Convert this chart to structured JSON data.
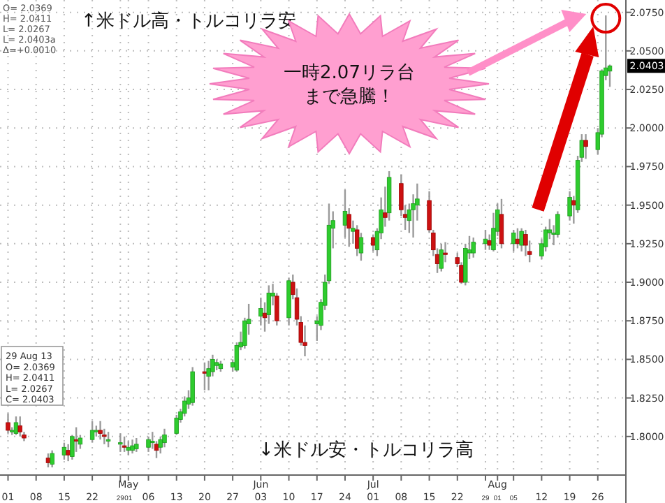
{
  "chart_data": {
    "type": "candlestick",
    "x": [
      "--04-01",
      "--04-02",
      "--04-03",
      "--04-04",
      "--04-05",
      "--04-11",
      "--04-12",
      "--04-15",
      "--04-16",
      "--04-17",
      "--04-18",
      "--04-19",
      "--04-22",
      "--04-23",
      "--04-24",
      "--04-25",
      "--04-26",
      "--04-29",
      "--04-30",
      "--05-01",
      "--05-02",
      "--05-03",
      "--05-06",
      "--05-07",
      "--05-08",
      "--05-09",
      "--05-10",
      "--05-13",
      "--05-14",
      "--05-15",
      "--05-16",
      "--05-17",
      "--05-20",
      "--05-21",
      "--05-22",
      "--05-23",
      "--05-24",
      "--05-27",
      "--05-28",
      "--05-29",
      "--05-30",
      "--05-31",
      "--06-03",
      "--06-04",
      "--06-05",
      "--06-06",
      "--06-07",
      "--06-10",
      "--06-11",
      "--06-12",
      "--06-13",
      "--06-14",
      "--06-17",
      "--06-18",
      "--06-19",
      "--06-20",
      "--06-21",
      "--06-24",
      "--06-25",
      "--06-26",
      "--06-27",
      "--06-28",
      "--07-01",
      "--07-02",
      "--07-03",
      "--07-04",
      "--07-05",
      "--07-08",
      "--07-09",
      "--07-10",
      "--07-11",
      "--07-12",
      "--07-15",
      "--07-16",
      "--07-17",
      "--07-18",
      "--07-19",
      "--07-22",
      "--07-23",
      "--07-24",
      "--07-25",
      "--07-26",
      "--07-29",
      "--07-30",
      "--07-31",
      "--08-01",
      "--08-02",
      "--08-05",
      "--08-06",
      "--08-07",
      "--08-08",
      "--08-09",
      "--08-12",
      "--08-13",
      "--08-14",
      "--08-15",
      "--08-16",
      "--08-19",
      "--08-20",
      "--08-21",
      "--08-22",
      "--08-23",
      "--08-26",
      "--08-27",
      "--08-28",
      "--08-29"
    ],
    "ohlc": [
      [
        1.809,
        1.815,
        1.802,
        1.804
      ],
      [
        1.803,
        1.806,
        1.801,
        1.804
      ],
      [
        1.802,
        1.813,
        1.801,
        1.809
      ],
      [
        1.807,
        1.813,
        1.8,
        1.803
      ],
      [
        1.801,
        1.803,
        1.797,
        1.799
      ],
      [
        1.786,
        1.789,
        1.78,
        1.783
      ],
      [
        1.782,
        1.791,
        1.78,
        1.789
      ],
      [
        1.788,
        1.796,
        1.785,
        1.793
      ],
      [
        1.791,
        1.795,
        1.784,
        1.788
      ],
      [
        1.787,
        1.801,
        1.785,
        1.8
      ],
      [
        1.798,
        1.806,
        1.79,
        1.797
      ],
      [
        1.795,
        1.801,
        1.792,
        1.799
      ],
      [
        1.798,
        1.81,
        1.796,
        1.804
      ],
      [
        1.803,
        1.807,
        1.8,
        1.804
      ],
      [
        1.804,
        1.81,
        1.798,
        1.802
      ],
      [
        1.801,
        1.805,
        1.795,
        1.8
      ],
      [
        1.797,
        1.803,
        1.793,
        1.798
      ],
      [
        1.795,
        1.802,
        1.79,
        1.796
      ],
      [
        1.794,
        1.8,
        1.79,
        1.793
      ],
      [
        1.791,
        1.797,
        1.788,
        1.793
      ],
      [
        1.791,
        1.798,
        1.789,
        1.794
      ],
      [
        1.792,
        1.799,
        1.79,
        1.795
      ],
      [
        1.793,
        1.8,
        1.79,
        1.798
      ],
      [
        1.796,
        1.803,
        1.792,
        1.797
      ],
      [
        1.795,
        1.797,
        1.786,
        1.791
      ],
      [
        1.793,
        1.8,
        1.789,
        1.798
      ],
      [
        1.796,
        1.805,
        1.793,
        1.801
      ],
      [
        1.802,
        1.814,
        1.801,
        1.812
      ],
      [
        1.811,
        1.818,
        1.809,
        1.816
      ],
      [
        1.815,
        1.826,
        1.813,
        1.823
      ],
      [
        1.821,
        1.83,
        1.818,
        1.825
      ],
      [
        1.822,
        1.845,
        1.82,
        1.842
      ],
      [
        1.842,
        1.848,
        1.83,
        1.841
      ],
      [
        1.839,
        1.849,
        1.83,
        1.844
      ],
      [
        1.842,
        1.853,
        1.839,
        1.85
      ],
      [
        1.846,
        1.85,
        1.843,
        1.848
      ],
      [
        1.844,
        1.849,
        1.842,
        1.847
      ],
      [
        1.845,
        1.85,
        1.842,
        1.848
      ],
      [
        1.843,
        1.861,
        1.842,
        1.859
      ],
      [
        1.858,
        1.868,
        1.856,
        1.861
      ],
      [
        1.859,
        1.877,
        1.857,
        1.875
      ],
      [
        1.873,
        1.886,
        1.866,
        1.876
      ],
      [
        1.878,
        1.89,
        1.872,
        1.883
      ],
      [
        1.88,
        1.887,
        1.868,
        1.877
      ],
      [
        1.879,
        1.898,
        1.873,
        1.893
      ],
      [
        1.891,
        1.899,
        1.885,
        1.893
      ],
      [
        1.891,
        1.893,
        1.872,
        1.875
      ],
      [
        1.877,
        1.903,
        1.872,
        1.901
      ],
      [
        1.9,
        1.905,
        1.889,
        1.892
      ],
      [
        1.89,
        1.896,
        1.872,
        1.876
      ],
      [
        1.874,
        1.878,
        1.859,
        1.861
      ],
      [
        1.861,
        1.872,
        1.852,
        1.859
      ],
      [
        1.873,
        1.878,
        1.862,
        1.875
      ],
      [
        1.872,
        1.889,
        1.869,
        1.887
      ],
      [
        1.885,
        1.905,
        1.882,
        1.9
      ],
      [
        1.901,
        1.951,
        1.899,
        1.937
      ],
      [
        1.935,
        1.946,
        1.922,
        1.94
      ],
      [
        1.937,
        1.96,
        1.929,
        1.946
      ],
      [
        1.944,
        1.948,
        1.923,
        1.935
      ],
      [
        1.933,
        1.94,
        1.925,
        1.935
      ],
      [
        1.934,
        1.937,
        1.917,
        1.922
      ],
      [
        1.919,
        1.932,
        1.914,
        1.929
      ],
      [
        1.929,
        1.931,
        1.92,
        1.924
      ],
      [
        1.921,
        1.935,
        1.917,
        1.933
      ],
      [
        1.932,
        1.955,
        1.928,
        1.947
      ],
      [
        1.945,
        1.962,
        1.936,
        1.942
      ],
      [
        1.945,
        1.972,
        1.94,
        1.968
      ],
      [
        1.964,
        1.97,
        1.943,
        1.947
      ],
      [
        1.944,
        1.95,
        1.934,
        1.942
      ],
      [
        1.94,
        1.951,
        1.932,
        1.947
      ],
      [
        1.947,
        1.957,
        1.929,
        1.951
      ],
      [
        1.95,
        1.964,
        1.94,
        1.954
      ],
      [
        1.953,
        1.959,
        1.932,
        1.934
      ],
      [
        1.932,
        1.934,
        1.917,
        1.921
      ],
      [
        1.918,
        1.922,
        1.906,
        1.912
      ],
      [
        1.909,
        1.925,
        1.907,
        1.921
      ],
      [
        1.919,
        1.926,
        1.913,
        1.918
      ],
      [
        1.916,
        1.919,
        1.91,
        1.912
      ],
      [
        1.911,
        1.913,
        1.899,
        1.9
      ],
      [
        1.9,
        1.925,
        1.898,
        1.922
      ],
      [
        1.919,
        1.93,
        1.915,
        1.921
      ],
      [
        1.919,
        1.929,
        1.916,
        1.926
      ],
      [
        1.925,
        1.934,
        1.921,
        1.928
      ],
      [
        1.927,
        1.931,
        1.921,
        1.924
      ],
      [
        1.921,
        1.945,
        1.92,
        1.935
      ],
      [
        1.933,
        1.951,
        1.93,
        1.947
      ],
      [
        1.944,
        1.954,
        1.922,
        1.925
      ],
      [
        1.925,
        1.934,
        1.92,
        1.932
      ],
      [
        1.928,
        1.935,
        1.922,
        1.925
      ],
      [
        1.924,
        1.935,
        1.92,
        1.933
      ],
      [
        1.931,
        1.934,
        1.917,
        1.924
      ],
      [
        1.92,
        1.927,
        1.913,
        1.918
      ],
      [
        1.917,
        1.928,
        1.915,
        1.925
      ],
      [
        1.923,
        1.936,
        1.92,
        1.934
      ],
      [
        1.932,
        1.941,
        1.928,
        1.934
      ],
      [
        1.931,
        1.937,
        1.924,
        1.932
      ],
      [
        1.931,
        1.946,
        1.929,
        1.944
      ],
      [
        1.943,
        1.959,
        1.94,
        1.955
      ],
      [
        1.953,
        1.956,
        1.938,
        1.95
      ],
      [
        1.947,
        1.982,
        1.945,
        1.979
      ],
      [
        1.981,
        1.996,
        1.978,
        1.992
      ],
      [
        1.992,
        1.996,
        1.98,
        1.988
      ],
      [
        1.986,
        2.0,
        1.983,
        1.997
      ],
      [
        1.996,
        2.038,
        1.994,
        2.037
      ],
      [
        2.034,
        2.073,
        2.031,
        2.039
      ],
      [
        2.0369,
        2.0411,
        2.0267,
        2.0403
      ]
    ],
    "xlim": [
      "--03-30",
      "--09-02"
    ],
    "xticks": [
      {
        "value": "--04-01",
        "label": "01"
      },
      {
        "value": "--04-08",
        "label": "08"
      },
      {
        "value": "--04-15",
        "label": "15"
      },
      {
        "value": "--04-22",
        "label": "22"
      },
      {
        "value": "--04-29",
        "label": "29"
      },
      {
        "value": "--05-01",
        "label": "May\n01"
      },
      {
        "value": "--05-06",
        "label": "06"
      },
      {
        "value": "--05-13",
        "label": "13"
      },
      {
        "value": "--05-20",
        "label": "20"
      },
      {
        "value": "--05-27",
        "label": "27"
      },
      {
        "value": "--06-03",
        "label": "Jun\n03"
      },
      {
        "value": "--06-10",
        "label": "10"
      },
      {
        "value": "--06-17",
        "label": "17"
      },
      {
        "value": "--06-24",
        "label": "24"
      },
      {
        "value": "--07-01",
        "label": "Jul\n01"
      },
      {
        "value": "--07-08",
        "label": "08"
      },
      {
        "value": "--07-15",
        "label": "15"
      },
      {
        "value": "--07-22",
        "label": "22"
      },
      {
        "value": "--07-29",
        "label": "29"
      },
      {
        "value": "--08-01",
        "label": "Aug\n01"
      },
      {
        "value": "--08-05",
        "label": "05"
      },
      {
        "value": "--08-12",
        "label": "12"
      },
      {
        "value": "--08-19",
        "label": "19"
      },
      {
        "value": "--08-26",
        "label": "26"
      }
    ],
    "ylim": [
      1.775,
      2.083
    ],
    "yticks": [
      {
        "value": 1.8,
        "label": "1.8000"
      },
      {
        "value": 1.825,
        "label": "1.8250"
      },
      {
        "value": 1.85,
        "label": "1.8500"
      },
      {
        "value": 1.875,
        "label": "1.8750"
      },
      {
        "value": 1.9,
        "label": "1.9000"
      },
      {
        "value": 1.925,
        "label": "1.9250"
      },
      {
        "value": 1.95,
        "label": "1.9500"
      },
      {
        "value": 1.975,
        "label": "1.9750"
      },
      {
        "value": 2.0,
        "label": "2.0000"
      },
      {
        "value": 2.025,
        "label": "2.0250"
      },
      {
        "value": 2.05,
        "label": "2.0500"
      },
      {
        "value": 2.075,
        "label": "2.0750"
      }
    ],
    "grid": true,
    "annotations": [
      "↑米ドル高・トルコリラ安",
      "↓米ドル安・トルコリラ高",
      "一時2.07リラ台まで急騰！",
      "O= 2.0369",
      "H= 2.0411",
      "L= 2.0267",
      "L= 2.0403a",
      "Δ=+0.0010",
      "29 Aug 13",
      "O= 2.0369",
      "H= 2.0411",
      "L= 2.0267",
      "C= 2.0403",
      {
        "text": "2.0403",
        "y": 2.0403
      }
    ]
  }
}
